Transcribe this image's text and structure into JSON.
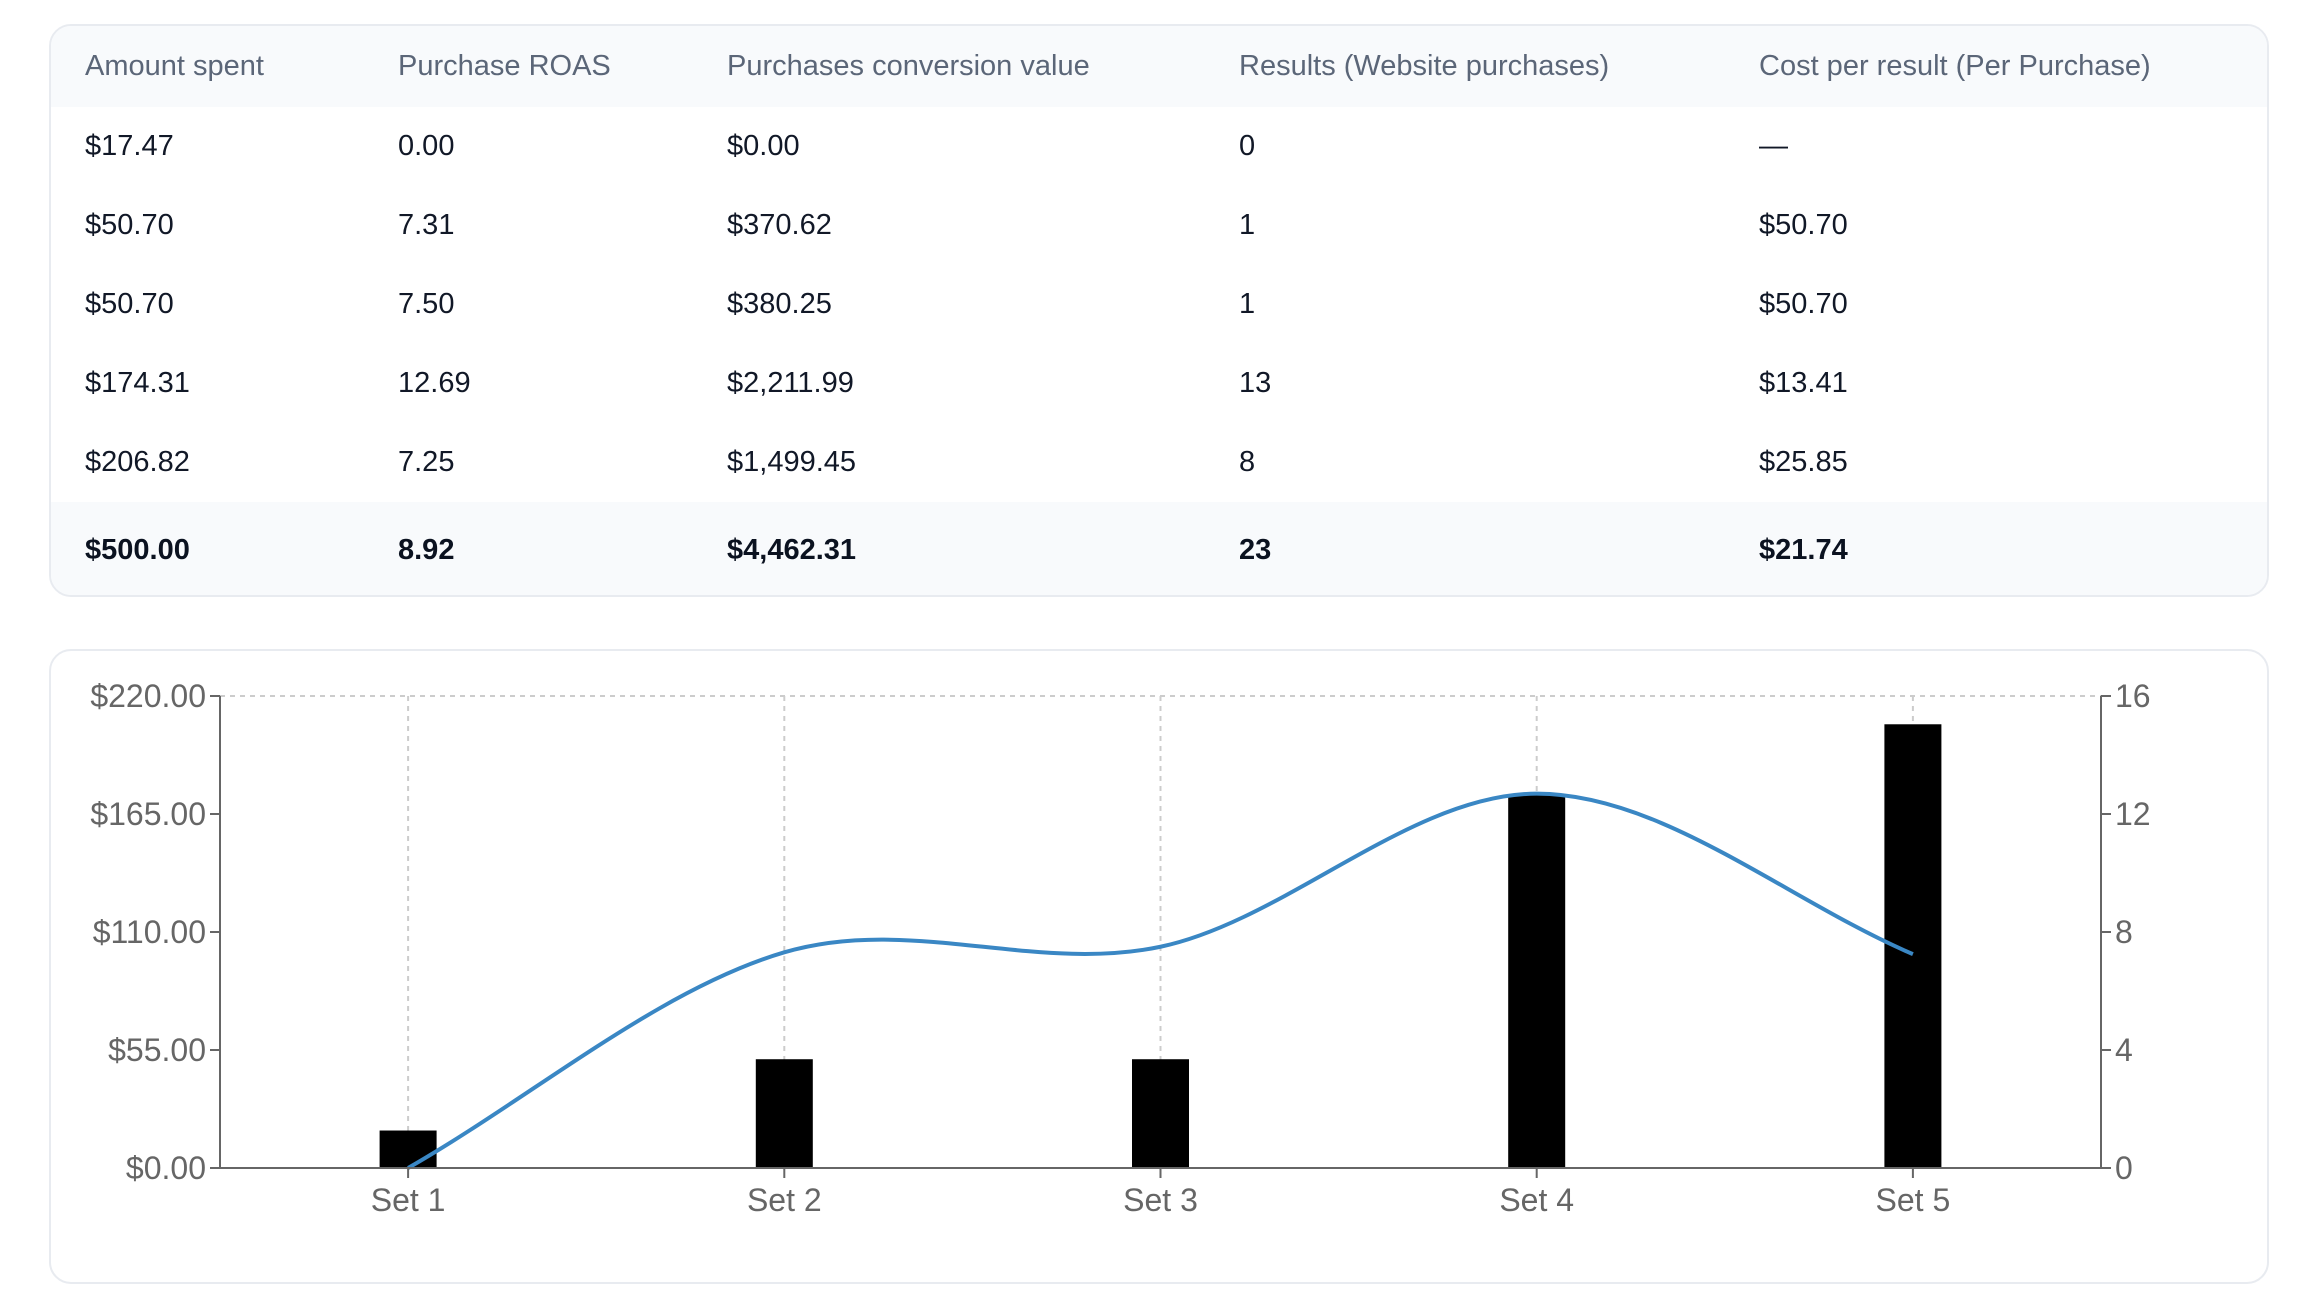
{
  "table": {
    "headers": [
      "Amount spent",
      "Purchase ROAS",
      "Purchases conversion value",
      "Results (Website purchases)",
      "Cost per result (Per Purchase)"
    ],
    "rows": [
      [
        "$17.47",
        "0.00",
        "$0.00",
        "0",
        "—"
      ],
      [
        "$50.70",
        "7.31",
        "$370.62",
        "1",
        "$50.70"
      ],
      [
        "$50.70",
        "7.50",
        "$380.25",
        "1",
        "$50.70"
      ],
      [
        "$174.31",
        "12.69",
        "$2,211.99",
        "13",
        "$13.41"
      ],
      [
        "$206.82",
        "7.25",
        "$1,499.45",
        "8",
        "$25.85"
      ]
    ],
    "total": [
      "$500.00",
      "8.92",
      "$4,462.31",
      "23",
      "$21.74"
    ]
  },
  "colors": {
    "bar": "#000000",
    "line": "#3a87c4",
    "grid": "#cccccc",
    "axis": "#666666"
  },
  "chart_data": {
    "type": "bar",
    "categories": [
      "Set 1",
      "Set 2",
      "Set 3",
      "Set 4",
      "Set 5"
    ],
    "series": [
      {
        "type": "bar",
        "axis": "left",
        "values": [
          17.47,
          50.7,
          50.7,
          174.31,
          206.82
        ]
      },
      {
        "type": "line",
        "axis": "right",
        "smooth": true,
        "values": [
          0.0,
          7.31,
          7.5,
          12.69,
          7.25
        ]
      }
    ],
    "y_left": {
      "lim": [
        0,
        220
      ],
      "ticks": [
        "$0.00",
        "$55.00",
        "$110.00",
        "$165.00",
        "$220.00"
      ],
      "tick_values": [
        0,
        55,
        110,
        165,
        220
      ]
    },
    "y_right": {
      "lim": [
        0,
        16
      ],
      "ticks": [
        "0",
        "4",
        "8",
        "12",
        "16"
      ],
      "tick_values": [
        0,
        4,
        8,
        12,
        16
      ]
    },
    "grid": "dashed",
    "legend": "none",
    "title": "",
    "xlabel": "",
    "ylabel": ""
  }
}
